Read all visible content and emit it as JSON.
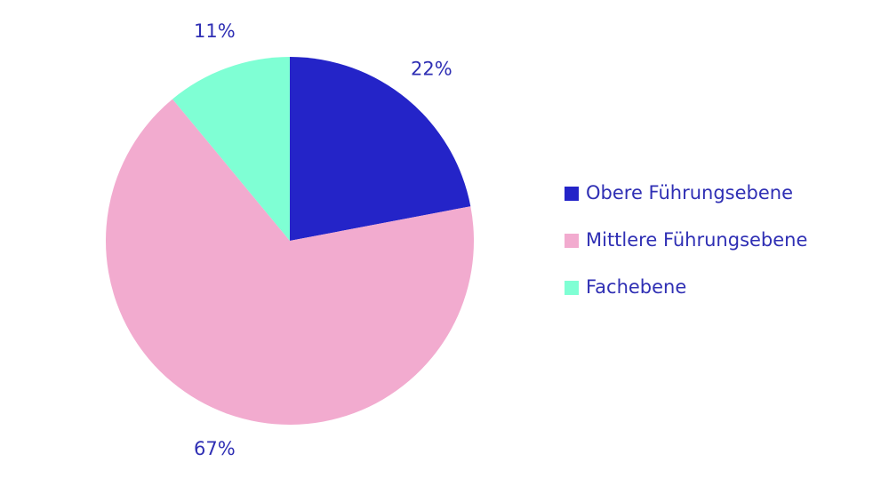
{
  "chart_data": {
    "type": "pie",
    "categories": [
      "Obere Führungsebene",
      "Mittlere Führungsebene",
      "Fachebene"
    ],
    "values": [
      22,
      67,
      11
    ],
    "value_labels": [
      "22%",
      "67%",
      "11%"
    ],
    "colors": [
      "#2424c8",
      "#f2abcf",
      "#7fffd4"
    ],
    "legend": "right"
  }
}
